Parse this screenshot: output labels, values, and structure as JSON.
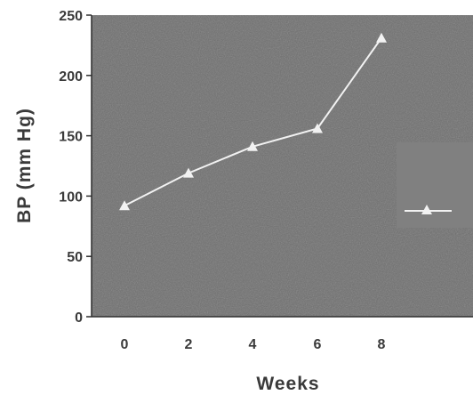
{
  "chart_data": {
    "type": "line",
    "title": "",
    "xlabel": "Weeks",
    "ylabel": "BP (mm Hg)",
    "x": [
      0,
      2,
      4,
      6,
      8
    ],
    "series": [
      {
        "values": [
          92,
          119,
          141,
          156,
          231
        ]
      }
    ],
    "xticks": [
      "0",
      "2",
      "4",
      "6",
      "8"
    ],
    "yticks": [
      "0",
      "50",
      "100",
      "150",
      "200",
      "250"
    ],
    "ylim": [
      0,
      250
    ],
    "grid": false,
    "legend": {
      "position": "right",
      "marker": "triangle"
    },
    "colors": {
      "plot_background": "#6e6e6e",
      "legend_background": "#808080",
      "line": "#f2f2f2",
      "text": "#3a3a3a"
    }
  }
}
